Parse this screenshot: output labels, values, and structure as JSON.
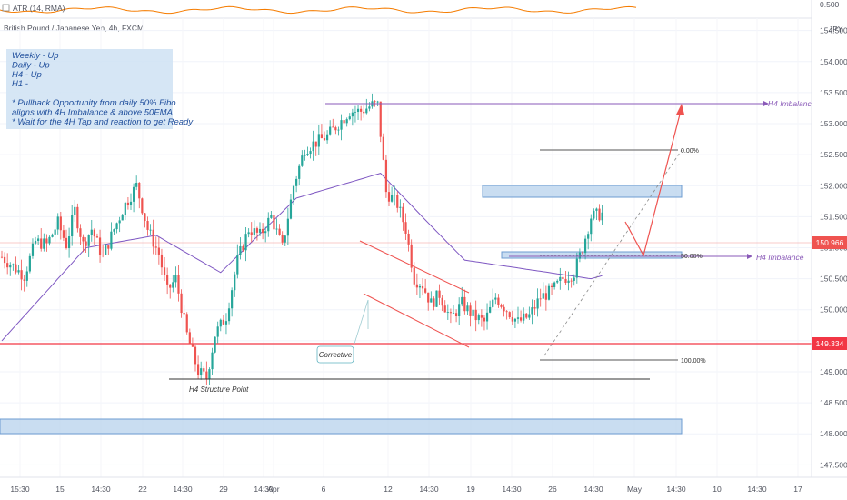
{
  "indicator": {
    "label": "ATR (14, RMA)",
    "scale_label": "0.500"
  },
  "header": {
    "symbol": "British Pound / Japanese Yen, 4h, FXCM",
    "currency": "JPY"
  },
  "notes": {
    "lines": [
      "Weekly - Up",
      "Daily    - Up",
      "H4      - Up",
      "H1       -",
      "",
      "* Pullback Opportunity from daily 50% Fibo",
      "   aligns with 4H Imbalance & above 50EMA",
      "* Wait for the 4H Tap and reaction to get Ready"
    ]
  },
  "annotations": {
    "imbalance_top": "H4 Imbalance",
    "imbalance_mid": "H4 Imbalance",
    "structure_point": "H4 Structure Point",
    "corrective": "Corrective",
    "fib_0": "0.00%",
    "fib_50": "50.00%",
    "fib_100": "100.00%"
  },
  "price_tags": {
    "current": "150.966",
    "support": "149.334"
  },
  "colors": {
    "up": "#26a69a",
    "down": "#ef5350",
    "ema": "#7e57c2",
    "zone_fill": "#bbd5ee",
    "zone_border": "#6d9cd1",
    "support": "#f23645",
    "atr": "#f57c00"
  },
  "chart_data": {
    "type": "candlestick",
    "symbol": "GBPJPY",
    "timeframe": "4h",
    "ylim": [
      147.3,
      154.7
    ],
    "y_ticks": [
      "154.500",
      "154.000",
      "153.500",
      "153.000",
      "152.500",
      "152.000",
      "151.500",
      "151.000",
      "150.500",
      "150.000",
      "149.500",
      "149.000",
      "148.500",
      "148.000",
      "147.500"
    ],
    "x_ticks": [
      "15:30",
      "15",
      "14:30",
      "22",
      "14:30",
      "29",
      "14:30",
      "Apr",
      "6",
      "12",
      "14:30",
      "19",
      "14:30",
      "26",
      "14:30",
      "May",
      "14:30",
      "10",
      "14:30",
      "17"
    ],
    "bar_count": 230,
    "ohlc_anchors": [
      [
        0,
        150.85
      ],
      [
        4,
        150.7
      ],
      [
        8,
        150.55
      ],
      [
        12,
        151.1
      ],
      [
        16,
        151.05
      ],
      [
        20,
        151.4
      ],
      [
        23,
        151.05
      ],
      [
        26,
        151.6
      ],
      [
        29,
        151.05
      ],
      [
        32,
        151.3
      ],
      [
        36,
        150.85
      ],
      [
        40,
        151.3
      ],
      [
        44,
        151.7
      ],
      [
        48,
        152.0
      ],
      [
        52,
        151.3
      ],
      [
        56,
        150.9
      ],
      [
        59,
        150.3
      ],
      [
        62,
        150.5
      ],
      [
        66,
        149.6
      ],
      [
        70,
        149.0
      ],
      [
        73,
        148.9
      ],
      [
        76,
        149.6
      ],
      [
        80,
        149.9
      ],
      [
        84,
        150.8
      ],
      [
        88,
        151.3
      ],
      [
        92,
        151.2
      ],
      [
        96,
        151.5
      ],
      [
        100,
        151.0
      ],
      [
        104,
        152.0
      ],
      [
        108,
        152.6
      ],
      [
        112,
        152.7
      ],
      [
        116,
        152.8
      ],
      [
        120,
        153.0
      ],
      [
        124,
        153.2
      ],
      [
        128,
        153.2
      ],
      [
        132,
        153.3
      ],
      [
        134,
        153.3
      ],
      [
        137,
        151.9
      ],
      [
        141,
        151.7
      ],
      [
        144,
        151.3
      ],
      [
        147,
        150.5
      ],
      [
        150,
        150.4
      ],
      [
        153,
        150.1
      ],
      [
        156,
        150.25
      ],
      [
        160,
        149.85
      ],
      [
        164,
        150.1
      ],
      [
        168,
        149.9
      ],
      [
        172,
        149.8
      ],
      [
        176,
        150.2
      ],
      [
        180,
        150.0
      ],
      [
        184,
        149.8
      ],
      [
        188,
        149.9
      ],
      [
        192,
        150.2
      ],
      [
        196,
        150.3
      ],
      [
        200,
        150.5
      ],
      [
        204,
        150.6
      ],
      [
        207,
        151.0
      ],
      [
        210,
        151.5
      ],
      [
        214,
        151.55
      ]
    ],
    "ema50_anchors": [
      [
        0,
        149.5
      ],
      [
        30,
        151.0
      ],
      [
        55,
        151.2
      ],
      [
        78,
        150.6
      ],
      [
        105,
        151.8
      ],
      [
        135,
        152.2
      ],
      [
        152,
        151.4
      ],
      [
        165,
        150.8
      ],
      [
        195,
        150.6
      ],
      [
        210,
        150.5
      ],
      [
        214,
        150.55
      ]
    ]
  }
}
